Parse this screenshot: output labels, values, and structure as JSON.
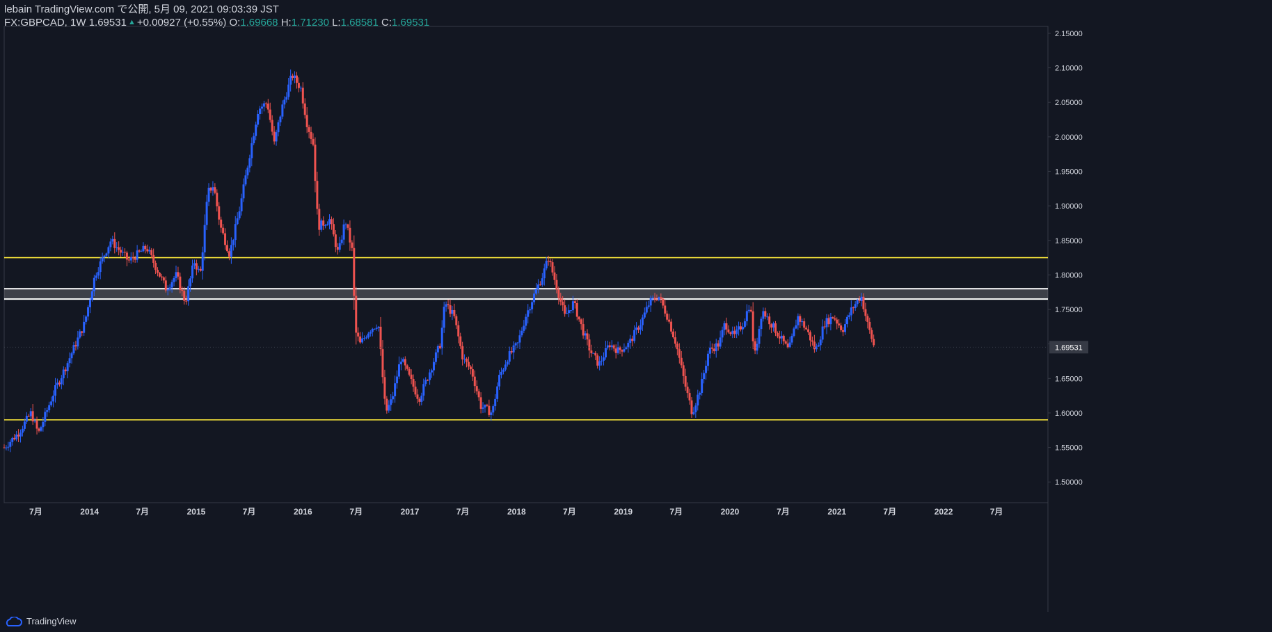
{
  "header": {
    "line1": "lebain TradingView.com で公開, 5月 09, 2021 09:03:39 JST",
    "symbol": "FX:GBPCAD, 1W",
    "last": "1.69531",
    "change": "+0.00927 (+0.55%)",
    "o_label": "O:",
    "o_value": "1.69668",
    "h_label": "H:",
    "h_value": "1.71230",
    "l_label": "L:",
    "l_value": "1.68581",
    "c_label": "C:",
    "c_value": "1.69531"
  },
  "footer": {
    "brand": "TradingView"
  },
  "colors": {
    "background": "#131722",
    "up": "#2962ff",
    "down": "#ef5350",
    "horizontal_line": "#ffeb3b",
    "zone_border": "#ffffff",
    "text": "#d1d4dc",
    "highlight": "#26a69a",
    "axis_border": "#363a45"
  },
  "chart_data": {
    "type": "candlestick",
    "interval": "1W",
    "symbol": "FX:GBPCAD",
    "ylim": [
      1.47,
      2.16
    ],
    "y_ticks": [
      1.5,
      1.55,
      1.6,
      1.65,
      1.7,
      1.75,
      1.8,
      1.85,
      1.9,
      1.95,
      2.0,
      2.05,
      2.1,
      2.15
    ],
    "y_tick_labels": [
      "1.50000",
      "1.55000",
      "1.60000",
      "1.65000",
      "1.70000",
      "1.75000",
      "1.80000",
      "1.85000",
      "1.90000",
      "1.95000",
      "2.00000",
      "2.05000",
      "2.10000",
      "2.15000"
    ],
    "x_range": [
      "2013-03-15",
      "2022-12-24"
    ],
    "x_ticks": [
      {
        "date": "2013-07-01",
        "label": "7月"
      },
      {
        "date": "2014-01-01",
        "label": "2014"
      },
      {
        "date": "2014-07-01",
        "label": "7月"
      },
      {
        "date": "2015-01-01",
        "label": "2015"
      },
      {
        "date": "2015-07-01",
        "label": "7月"
      },
      {
        "date": "2016-01-01",
        "label": "2016"
      },
      {
        "date": "2016-07-01",
        "label": "7月"
      },
      {
        "date": "2017-01-01",
        "label": "2017"
      },
      {
        "date": "2017-07-01",
        "label": "7月"
      },
      {
        "date": "2018-01-01",
        "label": "2018"
      },
      {
        "date": "2018-07-01",
        "label": "7月"
      },
      {
        "date": "2019-01-01",
        "label": "2019"
      },
      {
        "date": "2019-07-01",
        "label": "7月"
      },
      {
        "date": "2020-01-01",
        "label": "2020"
      },
      {
        "date": "2020-07-01",
        "label": "7月"
      },
      {
        "date": "2021-01-01",
        "label": "2021"
      },
      {
        "date": "2021-07-01",
        "label": "7月"
      },
      {
        "date": "2022-01-01",
        "label": "2022"
      },
      {
        "date": "2022-07-01",
        "label": "7月"
      }
    ],
    "price_label": "1.69531",
    "horizontal_lines": [
      1.825,
      1.59
    ],
    "zone": [
      1.765,
      1.78
    ],
    "close_path": [
      [
        "2013-03-15",
        1.55
      ],
      [
        "2013-05-01",
        1.57
      ],
      [
        "2013-06-15",
        1.6
      ],
      [
        "2013-07-10",
        1.57
      ],
      [
        "2013-09-01",
        1.63
      ],
      [
        "2013-10-15",
        1.67
      ],
      [
        "2013-12-15",
        1.73
      ],
      [
        "2014-01-20",
        1.8
      ],
      [
        "2014-03-15",
        1.85
      ],
      [
        "2014-05-15",
        1.82
      ],
      [
        "2014-07-15",
        1.84
      ],
      [
        "2014-09-20",
        1.78
      ],
      [
        "2014-10-25",
        1.8
      ],
      [
        "2014-11-25",
        1.76
      ],
      [
        "2014-12-25",
        1.82
      ],
      [
        "2015-01-15",
        1.8
      ],
      [
        "2015-02-10",
        1.92
      ],
      [
        "2015-03-01",
        1.93
      ],
      [
        "2015-03-25",
        1.87
      ],
      [
        "2015-04-25",
        1.83
      ],
      [
        "2015-06-01",
        1.9
      ],
      [
        "2015-07-01",
        1.97
      ],
      [
        "2015-08-01",
        2.04
      ],
      [
        "2015-09-01",
        2.05
      ],
      [
        "2015-09-25",
        1.99
      ],
      [
        "2015-10-20",
        2.04
      ],
      [
        "2015-11-25",
        2.09
      ],
      [
        "2015-12-25",
        2.07
      ],
      [
        "2016-01-15",
        2.02
      ],
      [
        "2016-02-05",
        1.99
      ],
      [
        "2016-02-22",
        1.87
      ],
      [
        "2016-04-01",
        1.88
      ],
      [
        "2016-05-01",
        1.83
      ],
      [
        "2016-05-25",
        1.88
      ],
      [
        "2016-06-20",
        1.83
      ],
      [
        "2016-06-27",
        1.72
      ],
      [
        "2016-07-15",
        1.7
      ],
      [
        "2016-08-15",
        1.72
      ],
      [
        "2016-09-15",
        1.73
      ],
      [
        "2016-10-10",
        1.6
      ],
      [
        "2016-11-01",
        1.62
      ],
      [
        "2016-12-01",
        1.68
      ],
      [
        "2017-01-01",
        1.65
      ],
      [
        "2017-02-01",
        1.62
      ],
      [
        "2017-03-01",
        1.65
      ],
      [
        "2017-04-15",
        1.7
      ],
      [
        "2017-05-01",
        1.76
      ],
      [
        "2017-06-01",
        1.74
      ],
      [
        "2017-07-01",
        1.68
      ],
      [
        "2017-08-01",
        1.66
      ],
      [
        "2017-09-01",
        1.61
      ],
      [
        "2017-10-10",
        1.6
      ],
      [
        "2017-11-01",
        1.65
      ],
      [
        "2017-12-01",
        1.68
      ],
      [
        "2018-01-05",
        1.7
      ],
      [
        "2018-02-01",
        1.74
      ],
      [
        "2018-03-01",
        1.77
      ],
      [
        "2018-04-01",
        1.8
      ],
      [
        "2018-04-20",
        1.825
      ],
      [
        "2018-05-20",
        1.78
      ],
      [
        "2018-06-15",
        1.74
      ],
      [
        "2018-07-15",
        1.76
      ],
      [
        "2018-08-15",
        1.72
      ],
      [
        "2018-09-10",
        1.69
      ],
      [
        "2018-10-10",
        1.67
      ],
      [
        "2018-11-15",
        1.7
      ],
      [
        "2018-12-15",
        1.69
      ],
      [
        "2019-01-20",
        1.7
      ],
      [
        "2019-03-01",
        1.73
      ],
      [
        "2019-04-01",
        1.76
      ],
      [
        "2019-05-01",
        1.77
      ],
      [
        "2019-06-01",
        1.74
      ],
      [
        "2019-07-01",
        1.7
      ],
      [
        "2019-08-01",
        1.64
      ],
      [
        "2019-08-25",
        1.6
      ],
      [
        "2019-09-25",
        1.64
      ],
      [
        "2019-10-20",
        1.69
      ],
      [
        "2019-11-25",
        1.7
      ],
      [
        "2019-12-15",
        1.73
      ],
      [
        "2020-01-15",
        1.71
      ],
      [
        "2020-02-15",
        1.73
      ],
      [
        "2020-03-10",
        1.76
      ],
      [
        "2020-03-25",
        1.68
      ],
      [
        "2020-04-20",
        1.75
      ],
      [
        "2020-05-20",
        1.73
      ],
      [
        "2020-06-20",
        1.71
      ],
      [
        "2020-07-20",
        1.69
      ],
      [
        "2020-08-20",
        1.74
      ],
      [
        "2020-09-20",
        1.72
      ],
      [
        "2020-10-20",
        1.69
      ],
      [
        "2020-11-20",
        1.73
      ],
      [
        "2020-12-20",
        1.74
      ],
      [
        "2021-01-20",
        1.72
      ],
      [
        "2021-02-20",
        1.75
      ],
      [
        "2021-03-25",
        1.77
      ],
      [
        "2021-04-15",
        1.73
      ],
      [
        "2021-05-09",
        1.695
      ]
    ]
  }
}
